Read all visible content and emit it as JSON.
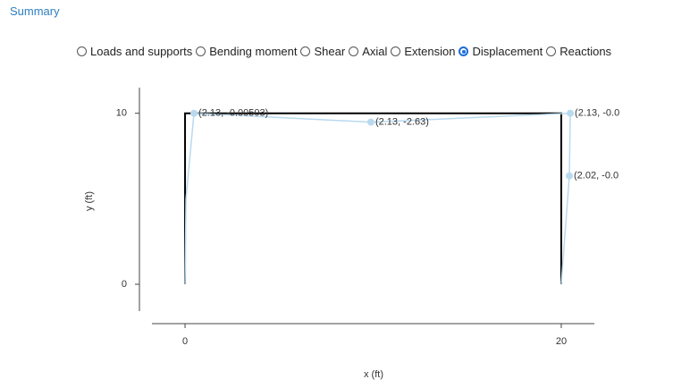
{
  "header": {
    "link": "Summary"
  },
  "options": {
    "items": [
      "Loads and supports",
      "Bending moment",
      "Shear",
      "Axial",
      "Extension",
      "Displacement",
      "Reactions"
    ],
    "selected": 5
  },
  "chart_data": {
    "type": "line",
    "xlabel": "x (ft)",
    "ylabel": "y (ft)",
    "xlim": [
      -1.76,
      21.76
    ],
    "ylim": [
      -1.57,
      11.5
    ],
    "xticks": [
      0,
      20
    ],
    "yticks": [
      0,
      10
    ],
    "series": [
      {
        "color": "#000000",
        "x": [
          0,
          0,
          20,
          20
        ],
        "values": [
          0,
          10,
          10,
          0
        ],
        "markers": false
      },
      {
        "color": "#b9d9ef",
        "x": [
          0,
          0.05,
          0.475,
          9.88,
          20.48,
          20.43,
          20
        ],
        "values": [
          0,
          5,
          10,
          9.48,
          10,
          6.34,
          0
        ],
        "markers": true,
        "point_labels": [
          null,
          null,
          "(2.13, -0.00503)",
          "(2.13, -2.63)",
          "(2.13, -0.0",
          "(2.02, -0.0",
          null
        ]
      }
    ]
  }
}
